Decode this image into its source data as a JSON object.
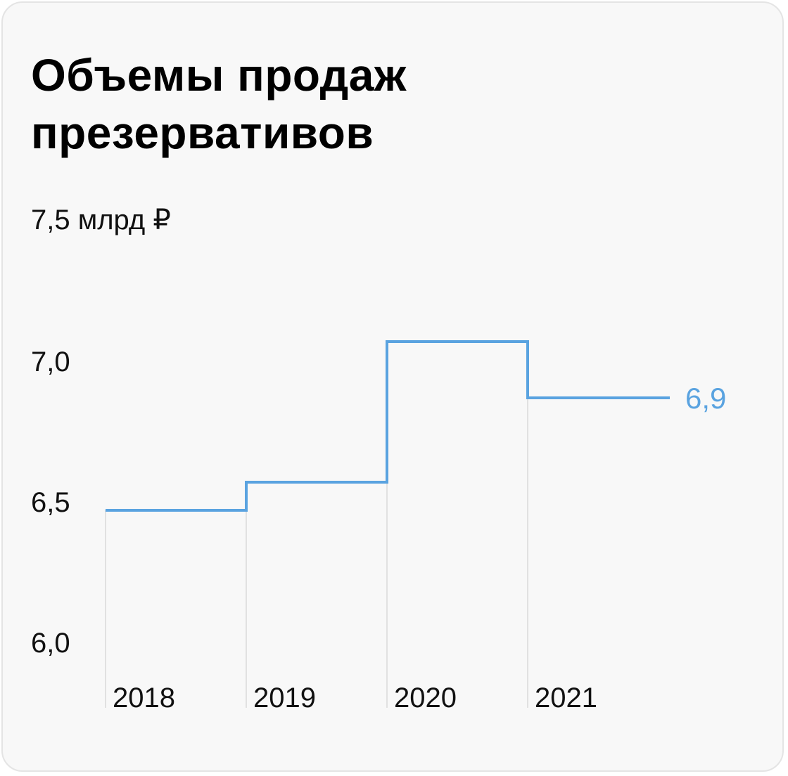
{
  "title": {
    "line1": "Объемы продаж",
    "line2": "презервативов"
  },
  "colors": {
    "line": "#5aa3e0",
    "gridline": "#d9d9d9",
    "background": "#f8f8f8",
    "text": "#111111"
  },
  "chart_data": {
    "type": "line",
    "step": true,
    "title": "Объемы продаж презервативов",
    "categories": [
      "2018",
      "2019",
      "2020",
      "2021"
    ],
    "values": [
      6.47,
      6.57,
      7.07,
      6.87
    ],
    "y_unit_label": "7,5 млрд ₽",
    "y_ticks": [
      {
        "value": 6.0,
        "label": "6,0"
      },
      {
        "value": 6.5,
        "label": "6,5"
      },
      {
        "value": 7.0,
        "label": "7,0"
      }
    ],
    "ylim": [
      6.0,
      7.5
    ],
    "end_label": "6,9",
    "grid": false
  }
}
